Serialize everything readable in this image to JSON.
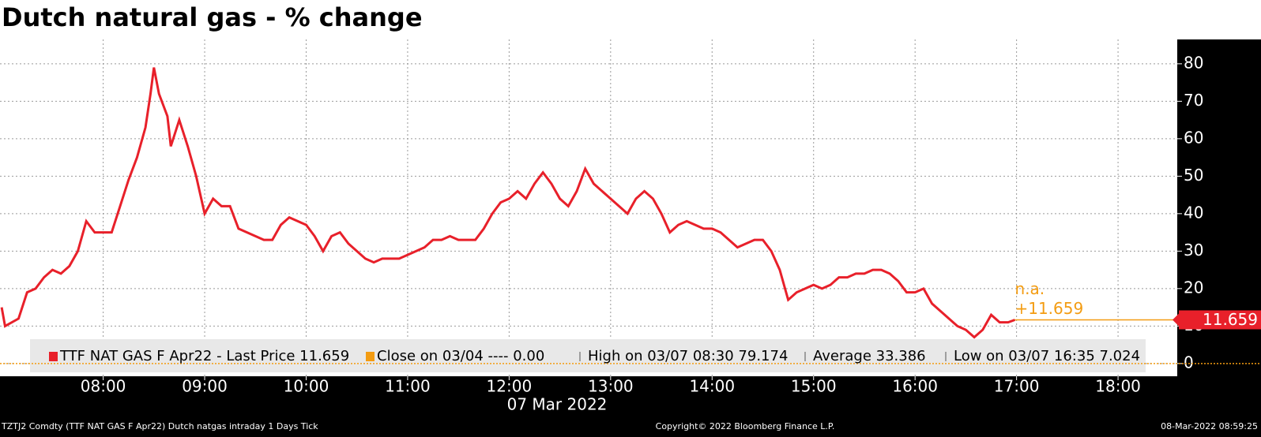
{
  "chart_data": {
    "type": "line",
    "title": "Dutch natural gas - % change",
    "x_axis_label": "07 Mar 2022",
    "x": [
      "07:00",
      "07:02",
      "07:10",
      "07:15",
      "07:20",
      "07:25",
      "07:30",
      "07:35",
      "07:40",
      "07:45",
      "07:50",
      "07:55",
      "08:00",
      "08:05",
      "08:10",
      "08:15",
      "08:20",
      "08:25",
      "08:28",
      "08:30",
      "08:33",
      "08:38",
      "08:40",
      "08:45",
      "08:50",
      "08:55",
      "09:00",
      "09:05",
      "09:10",
      "09:15",
      "09:20",
      "09:25",
      "09:30",
      "09:35",
      "09:40",
      "09:45",
      "09:50",
      "09:55",
      "10:00",
      "10:05",
      "10:10",
      "10:15",
      "10:20",
      "10:25",
      "10:30",
      "10:35",
      "10:40",
      "10:45",
      "10:50",
      "10:55",
      "11:00",
      "11:05",
      "11:10",
      "11:15",
      "11:20",
      "11:25",
      "11:30",
      "11:35",
      "11:40",
      "11:45",
      "11:50",
      "11:55",
      "12:00",
      "12:05",
      "12:10",
      "12:15",
      "12:20",
      "12:25",
      "12:30",
      "12:35",
      "12:40",
      "12:45",
      "12:50",
      "12:55",
      "13:00",
      "13:05",
      "13:10",
      "13:15",
      "13:20",
      "13:25",
      "13:30",
      "13:35",
      "13:40",
      "13:45",
      "13:50",
      "13:55",
      "14:00",
      "14:05",
      "14:10",
      "14:15",
      "14:20",
      "14:25",
      "14:30",
      "14:35",
      "14:40",
      "14:45",
      "14:50",
      "14:55",
      "15:00",
      "15:05",
      "15:10",
      "15:15",
      "15:20",
      "15:25",
      "15:30",
      "15:35",
      "15:40",
      "15:45",
      "15:50",
      "15:55",
      "16:00",
      "16:05",
      "16:10",
      "16:15",
      "16:20",
      "16:25",
      "16:30",
      "16:35",
      "16:40",
      "16:45",
      "16:50",
      "16:55",
      "16:59"
    ],
    "series": [
      {
        "name": "TTF NAT GAS F Apr22 - Last Price 11.659",
        "color": "#e8202a",
        "values": [
          15,
          10,
          12,
          19,
          20,
          23,
          25,
          24,
          26,
          30,
          38,
          35,
          35,
          35,
          42,
          49,
          55,
          63,
          72,
          79,
          72,
          66,
          58,
          65,
          58,
          50,
          40,
          44,
          42,
          42,
          36,
          35,
          34,
          33,
          33,
          37,
          39,
          38,
          37,
          34,
          30,
          34,
          35,
          32,
          30,
          28,
          27,
          28,
          28,
          28,
          29,
          30,
          31,
          33,
          33,
          34,
          33,
          33,
          33,
          36,
          40,
          43,
          44,
          46,
          44,
          48,
          51,
          48,
          44,
          42,
          46,
          52,
          48,
          46,
          44,
          42,
          40,
          44,
          46,
          44,
          40,
          35,
          37,
          38,
          37,
          36,
          36,
          35,
          33,
          31,
          32,
          33,
          33,
          30,
          25,
          17,
          19,
          20,
          21,
          20,
          21,
          23,
          23,
          24,
          24,
          25,
          25,
          24,
          22,
          19,
          19,
          20,
          16,
          14,
          12,
          10,
          9,
          7.024,
          9,
          13,
          11,
          11,
          11.659
        ]
      }
    ],
    "legend_items": [
      {
        "label": "Close on 03/04 ---- 0.00",
        "color": "#f39c12"
      },
      {
        "label": "High on 03/07 08:30 79.174"
      },
      {
        "label": "Average 33.386"
      },
      {
        "label": "Low on 03/07 16:35 7.024"
      }
    ],
    "reference_lines": [
      {
        "value": 0,
        "color": "#f39c12",
        "style": "dotted"
      },
      {
        "value": 11.659,
        "color": "#f39c12",
        "style": "solid",
        "start": "16:59",
        "labels": [
          "n.a.",
          "+11.659"
        ],
        "value_label": "11.659",
        "label_color": "#e8202a"
      }
    ],
    "xlim": [
      "06:59",
      "18:35"
    ],
    "xticks": [
      "08:00",
      "09:00",
      "10:00",
      "11:00",
      "12:00",
      "13:00",
      "14:00",
      "15:00",
      "16:00",
      "17:00",
      "18:00"
    ],
    "ylim": [
      -3.4,
      86.5
    ],
    "yticks": [
      0,
      10,
      20,
      30,
      40,
      50,
      60,
      70,
      80
    ],
    "grid": true,
    "footer": [
      "TZTJ2 Comdty (TTF NAT GAS F    Apr22) Dutch natgas intraday 1 Days  Tick",
      "Copyright© 2022 Bloomberg Finance L.P.",
      "08-Mar-2022 08:59:25"
    ]
  }
}
